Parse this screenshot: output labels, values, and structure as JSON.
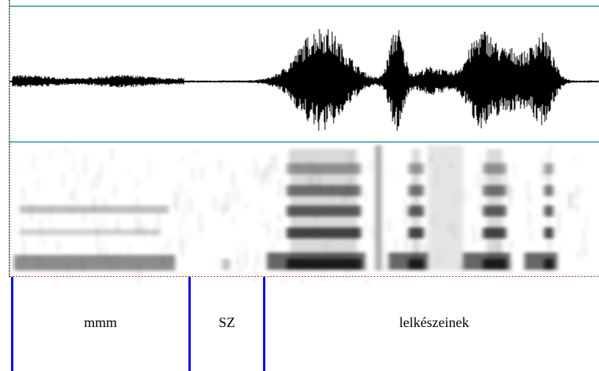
{
  "tier": {
    "labels": [
      "mmm",
      "SZ",
      "lelkészeinek"
    ]
  }
}
